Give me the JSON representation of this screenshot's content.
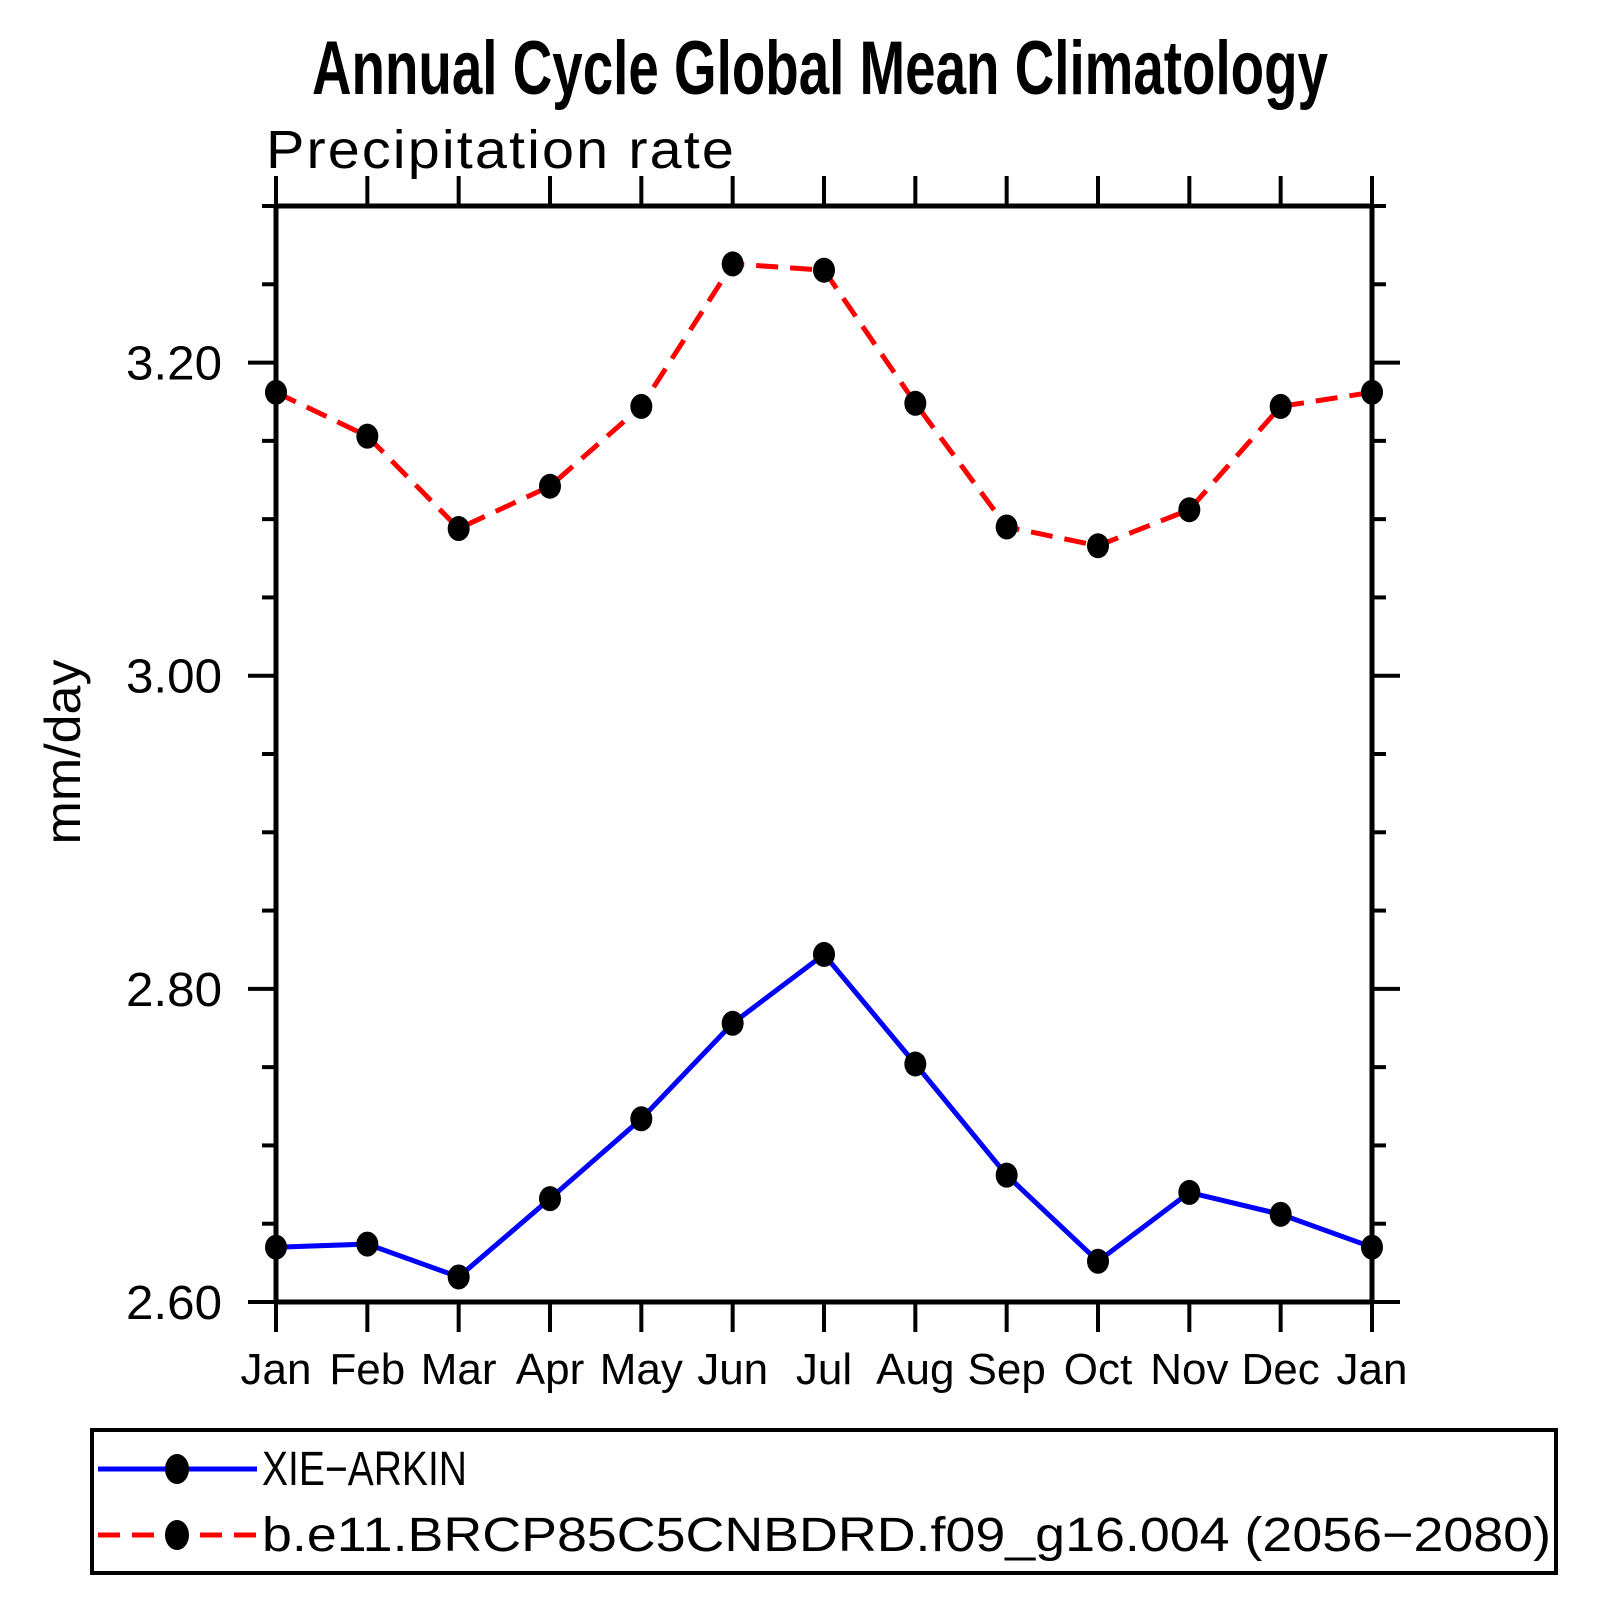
{
  "page": {
    "background": "#ffffff",
    "axis_color": "#000000",
    "text_color": "#000000"
  },
  "chart_data": {
    "type": "line",
    "title": "Annual Cycle Global Mean Climatology",
    "subtitle": "Precipitation rate",
    "ylabel": "mm/day",
    "xlabel": "",
    "grid": false,
    "legend_position": "bottom",
    "categories": [
      "Jan",
      "Feb",
      "Mar",
      "Apr",
      "May",
      "Jun",
      "Jul",
      "Aug",
      "Sep",
      "Oct",
      "Nov",
      "Dec",
      "Jan"
    ],
    "ylim": [
      2.6,
      3.3
    ],
    "yticks_minor_step": 0.05,
    "yticks_major": [
      {
        "value": 2.6,
        "label": "2.60"
      },
      {
        "value": 2.8,
        "label": "2.80"
      },
      {
        "value": 3.0,
        "label": "3.00"
      },
      {
        "value": 3.2,
        "label": "3.20"
      }
    ],
    "series": [
      {
        "name": "XIE−ARKIN",
        "color": "#0000ff",
        "style": "solid",
        "marker": "circle",
        "marker_color": "#000000",
        "values": [
          2.635,
          2.637,
          2.616,
          2.666,
          2.717,
          2.778,
          2.822,
          2.752,
          2.681,
          2.626,
          2.67,
          2.656,
          2.635
        ]
      },
      {
        "name": "b.e11.BRCP85C5CNBDRD.f09_g16.004 (2056−2080)",
        "color": "#ff0000",
        "style": "dashed",
        "marker": "circle",
        "marker_color": "#000000",
        "values": [
          3.181,
          3.153,
          3.094,
          3.121,
          3.172,
          3.263,
          3.259,
          3.174,
          3.095,
          3.083,
          3.106,
          3.172,
          3.181
        ]
      }
    ]
  }
}
